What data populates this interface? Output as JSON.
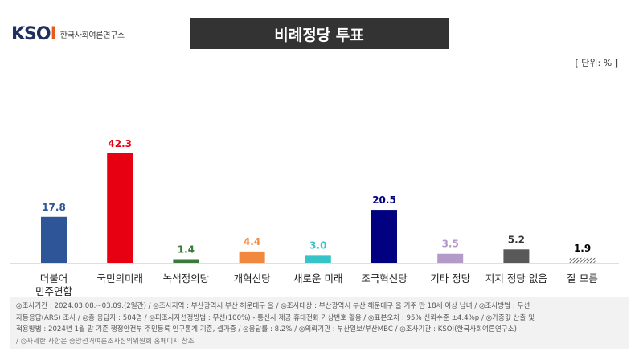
{
  "header": {
    "logo_mark_main": "KSO",
    "logo_mark_accent": "I",
    "logo_text": "한국사회여론연구소",
    "title": "비례정당 투표",
    "unit": "[ 단위: % ]"
  },
  "chart_data": {
    "type": "bar",
    "title": "비례정당 투표",
    "categories": [
      "더불어\n민주연합",
      "국민의미래",
      "녹색정의당",
      "개혁신당",
      "새로운 미래",
      "조국혁신당",
      "기타 정당",
      "지지 정당 없음",
      "잘 모름"
    ],
    "values": [
      17.8,
      42.3,
      1.4,
      4.4,
      3.0,
      20.5,
      3.5,
      5.2,
      1.9
    ],
    "value_labels": [
      "17.8",
      "42.3",
      "1.4",
      "4.4",
      "3.0",
      "20.5",
      "3.5",
      "5.2",
      "1.9"
    ],
    "colors": [
      "#2e5597",
      "#e60012",
      "#3b7a3b",
      "#f0883e",
      "#37c3c8",
      "#000080",
      "#b39ac8",
      "#595959",
      "hatch"
    ],
    "label_colors": [
      "#2e5597",
      "#e60012",
      "#3b7a3b",
      "#f0883e",
      "#37c3c8",
      "#000080",
      "#b39ac8",
      "#333333",
      "#000000"
    ],
    "ylim": [
      0,
      50
    ],
    "grid": false,
    "legend": "none"
  },
  "footer": {
    "lines": [
      "◎조사기간 : 2024.03.08.~03.09.(2일간)  / ◎조사지역 : 부산광역시 부산 해운대구 을  / ◎조사대상 : 부산광역시 부산 해운대구 을 거주 만 18세 이상 남녀  / ◎조사방법 : 무선",
      "자동응답(ARS) 조사  / ◎총 응답자 : 504명  / ◎피조사자선정방법 : 무선(100%) - 통신사 제공 휴대전화 가상번호 활용  / ◎표본오차 : 95% 신뢰수준 ±4.4%p  / ◎가중값 산출 및",
      "적용방법 : 2024년 1월 말 기준 행정안전부 주민등록 인구통계 기준, 셀가중  / ◎응답률 : 8.2%  / ◎의뢰기관 : 부산일보/부산MBC  / ◎조사기관 : KSOI(한국사회여론연구소)",
      "/ ◎자세한 사항은 중앙선거여론조사심의위원회 홈페이지 참조"
    ]
  }
}
